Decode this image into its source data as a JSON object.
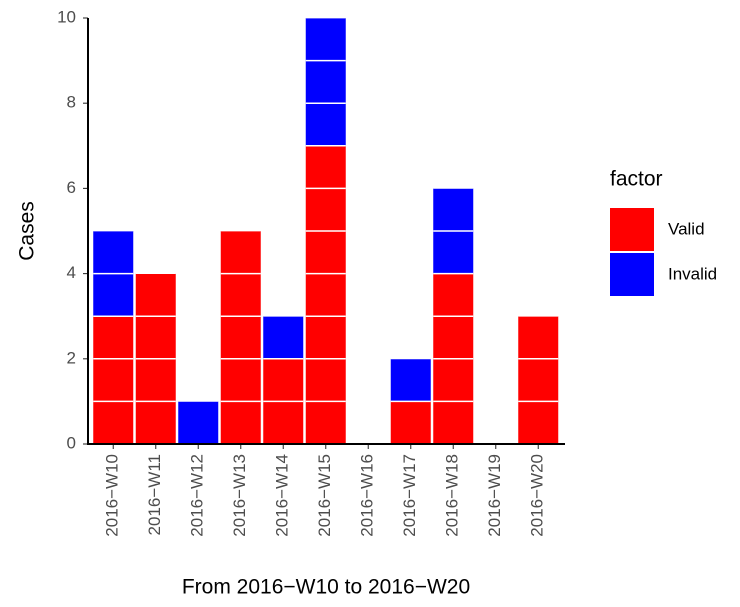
{
  "chart_data": {
    "type": "stacked_bar",
    "x_label": "From 2016−W10 to 2016−W20",
    "y_label": "Cases",
    "legend_title": "factor",
    "legend_position": "right",
    "categories": [
      "2016−W10",
      "2016−W11",
      "2016−W12",
      "2016−W13",
      "2016−W14",
      "2016−W15",
      "2016−W16",
      "2016−W17",
      "2016−W18",
      "2016−W19",
      "2016−W20"
    ],
    "series": [
      {
        "name": "Valid",
        "color": "#ff0000",
        "values": [
          3,
          4,
          0,
          5,
          2,
          7,
          0,
          1,
          4,
          0,
          3
        ]
      },
      {
        "name": "Invalid",
        "color": "#0000ff",
        "values": [
          2,
          0,
          1,
          0,
          1,
          3,
          0,
          1,
          2,
          0,
          0
        ]
      }
    ],
    "ylim": [
      0,
      10
    ],
    "yticks": [
      0,
      2,
      4,
      6,
      8,
      10
    ],
    "grid": false
  }
}
